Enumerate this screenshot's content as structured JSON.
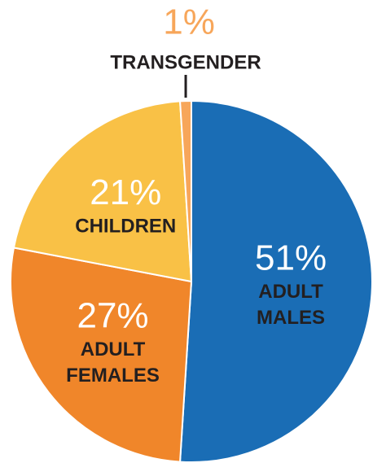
{
  "chart_data": {
    "type": "pie",
    "categories": [
      "ADULT MALES",
      "ADULT FEMALES",
      "CHILDREN",
      "TRANSGENDER"
    ],
    "values": [
      51,
      27,
      21,
      1
    ],
    "value_labels": [
      "51%",
      "27%",
      "21%",
      "1%"
    ],
    "colors": [
      "#1a6db5",
      "#f0862a",
      "#f9c146",
      "#f7a65a"
    ]
  }
}
